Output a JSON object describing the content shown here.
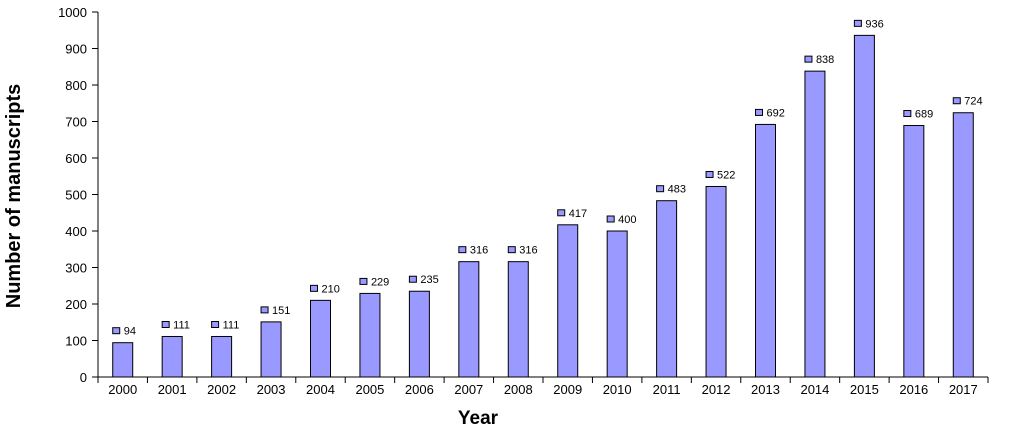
{
  "chart_data": {
    "type": "bar",
    "title": "",
    "xlabel": "Year",
    "ylabel": "Number of manuscripts",
    "ylim": [
      0,
      1000
    ],
    "yticks": [
      0,
      100,
      200,
      300,
      400,
      500,
      600,
      700,
      800,
      900,
      1000
    ],
    "grid": false,
    "categories": [
      "2000",
      "2001",
      "2002",
      "2003",
      "2004",
      "2005",
      "2006",
      "2007",
      "2008",
      "2009",
      "2010",
      "2011",
      "2012",
      "2013",
      "2014",
      "2015",
      "2016",
      "2017"
    ],
    "values": [
      94,
      111,
      111,
      151,
      210,
      229,
      235,
      316,
      316,
      417,
      400,
      483,
      522,
      692,
      838,
      936,
      689,
      724
    ],
    "bar_color": "#9999ff",
    "marker_color": "#9999ff"
  }
}
